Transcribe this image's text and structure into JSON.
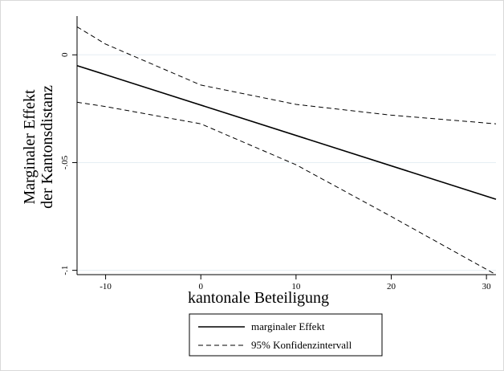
{
  "chart_data": {
    "type": "line",
    "xlabel": "kantonale Beteiligung",
    "ylabel_lines": [
      "Marginaler Effekt",
      "der Kantonsdistanz"
    ],
    "xlim": [
      -13,
      31
    ],
    "ylim": [
      -0.102,
      0.018
    ],
    "x_ticks": [
      -10,
      0,
      10,
      20,
      30
    ],
    "x_tick_labels": [
      "-10",
      "0",
      "10",
      "20",
      "30"
    ],
    "y_ticks": [
      0,
      -0.05,
      -0.1
    ],
    "y_tick_labels": [
      "0",
      "-.05",
      "-.1"
    ],
    "grid": "horizontal",
    "legend_position": "bottom",
    "series": [
      {
        "name": "marginaler Effekt",
        "style": "solid",
        "x": [
          -13,
          31
        ],
        "y": [
          -0.005,
          -0.067
        ]
      },
      {
        "name": "95% Konfidenzintervall",
        "style": "dashed",
        "x": [
          -13,
          -10,
          0,
          10,
          20,
          31
        ],
        "y": [
          0.013,
          0.005,
          -0.014,
          -0.023,
          -0.028,
          -0.032
        ]
      },
      {
        "name": "",
        "style": "dashed",
        "x": [
          -13,
          -10,
          0,
          10,
          20,
          31
        ],
        "y": [
          -0.022,
          -0.024,
          -0.032,
          -0.051,
          -0.075,
          -0.102
        ]
      }
    ]
  }
}
